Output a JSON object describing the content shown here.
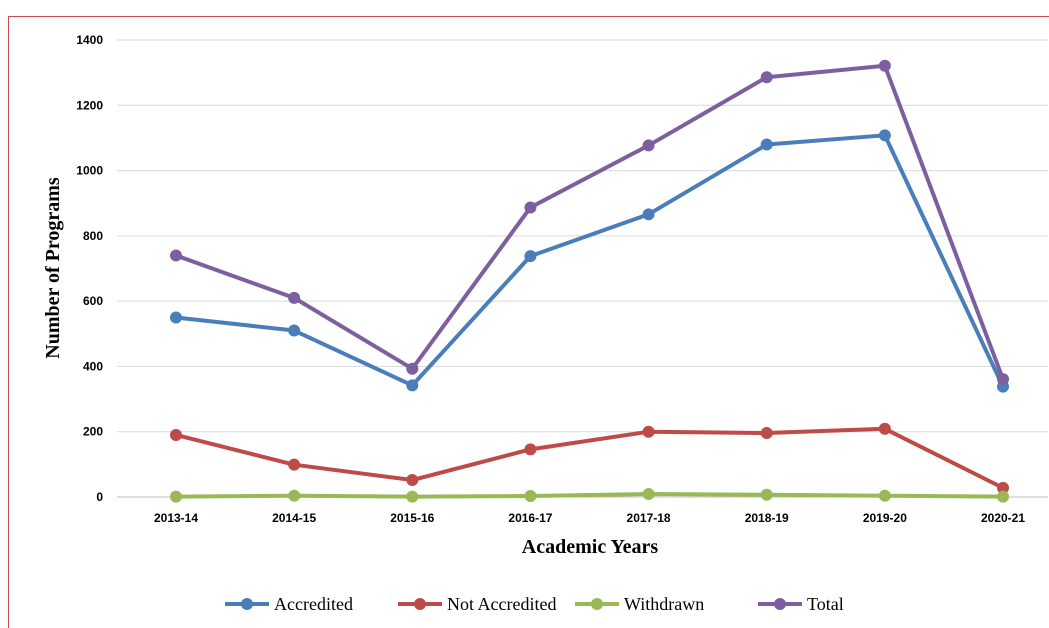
{
  "chart_data": {
    "type": "line",
    "title": "",
    "xlabel": "Academic Years",
    "ylabel": "Number of Programs",
    "categories": [
      "2013-14",
      "2014-15",
      "2015-16",
      "2016-17",
      "2017-18",
      "2018-19",
      "2019-20",
      "2020-21"
    ],
    "ylim": [
      0,
      1400
    ],
    "yticks": [
      0,
      200,
      400,
      600,
      800,
      1000,
      1200,
      1400
    ],
    "grid": "horizontal",
    "legend_position": "bottom",
    "series": [
      {
        "name": "Accredited",
        "color": "#4a7ebb",
        "values": [
          550,
          510,
          342,
          738,
          866,
          1080,
          1108,
          338
        ]
      },
      {
        "name": "Not Accredited",
        "color": "#be4b48",
        "values": [
          190,
          99,
          52,
          146,
          200,
          196,
          209,
          28
        ]
      },
      {
        "name": "Withdrawn",
        "color": "#98b954",
        "values": [
          1,
          4,
          1,
          3,
          9,
          7,
          4,
          1
        ]
      },
      {
        "name": "Total",
        "color": "#7d5fa0",
        "values": [
          740,
          610,
          393,
          887,
          1077,
          1286,
          1321,
          361
        ]
      }
    ]
  }
}
